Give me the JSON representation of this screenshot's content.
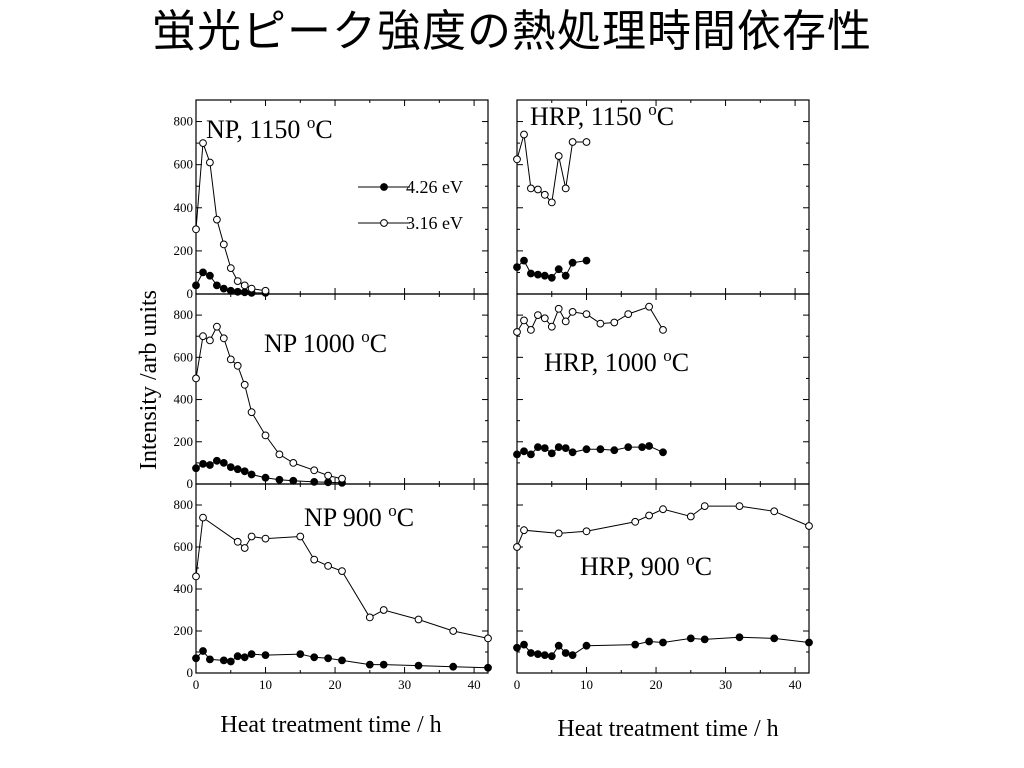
{
  "title": "蛍光ピーク強度の熱処理時間依存性",
  "chart_data": {
    "type": "line",
    "layout": "3x2 grid of panels",
    "ylabel": "Intensity /arb units",
    "xlabel": "Heat treatment time / h",
    "xlim": [
      0,
      42
    ],
    "xticks": [
      0,
      10,
      20,
      30,
      40
    ],
    "ylim": [
      0,
      900
    ],
    "yticks": [
      0,
      200,
      400,
      600,
      800
    ],
    "legend": [
      {
        "name": "4.26 eV",
        "marker": "filled-circle"
      },
      {
        "name": "3.16 eV",
        "marker": "open-circle"
      }
    ],
    "legend_position": "top-right of top-left panel",
    "panels": [
      {
        "label": "NP, 1150 °C",
        "series": [
          {
            "name": "4.26 eV",
            "x": [
              0,
              1,
              2,
              3,
              4,
              5,
              6,
              7,
              8,
              10
            ],
            "y": [
              40,
              100,
              85,
              40,
              25,
              15,
              10,
              8,
              5,
              5
            ]
          },
          {
            "name": "3.16 eV",
            "x": [
              0,
              1,
              2,
              3,
              4,
              5,
              6,
              7,
              8,
              10
            ],
            "y": [
              300,
              700,
              610,
              345,
              230,
              120,
              60,
              40,
              25,
              15
            ]
          }
        ]
      },
      {
        "label": "HRP, 1150 °C",
        "series": [
          {
            "name": "4.26 eV",
            "x": [
              0,
              1,
              2,
              3,
              4,
              5,
              6,
              7,
              8,
              10
            ],
            "y": [
              125,
              155,
              95,
              90,
              85,
              75,
              115,
              85,
              145,
              155
            ]
          },
          {
            "name": "3.16 eV",
            "x": [
              0,
              1,
              2,
              3,
              4,
              5,
              6,
              7,
              8,
              10
            ],
            "y": [
              625,
              740,
              490,
              485,
              460,
              425,
              640,
              490,
              705,
              705
            ]
          }
        ]
      },
      {
        "label": "NP 1000 °C",
        "series": [
          {
            "name": "4.26 eV",
            "x": [
              0,
              1,
              2,
              3,
              4,
              5,
              6,
              7,
              8,
              10,
              12,
              14,
              17,
              19,
              21
            ],
            "y": [
              75,
              95,
              90,
              110,
              100,
              80,
              70,
              60,
              45,
              30,
              20,
              15,
              10,
              8,
              5
            ]
          },
          {
            "name": "3.16 eV",
            "x": [
              0,
              1,
              2,
              3,
              4,
              5,
              6,
              7,
              8,
              10,
              12,
              14,
              17,
              19,
              21
            ],
            "y": [
              500,
              700,
              680,
              745,
              690,
              590,
              560,
              470,
              340,
              230,
              140,
              100,
              65,
              40,
              25
            ]
          }
        ]
      },
      {
        "label": "HRP, 1000 °C",
        "series": [
          {
            "name": "4.26 eV",
            "x": [
              0,
              1,
              2,
              3,
              4,
              5,
              6,
              7,
              8,
              10,
              12,
              14,
              16,
              18,
              19,
              21
            ],
            "y": [
              140,
              155,
              140,
              175,
              170,
              145,
              175,
              170,
              150,
              165,
              165,
              160,
              175,
              175,
              180,
              150
            ]
          },
          {
            "name": "3.16 eV",
            "x": [
              0,
              1,
              2,
              3,
              4,
              5,
              6,
              7,
              8,
              10,
              12,
              14,
              16,
              19,
              21
            ],
            "y": [
              720,
              775,
              730,
              800,
              785,
              745,
              830,
              770,
              815,
              805,
              760,
              765,
              805,
              840,
              730
            ]
          }
        ]
      },
      {
        "label": "NP 900 °C",
        "series": [
          {
            "name": "4.26 eV",
            "x": [
              0,
              1,
              2,
              4,
              5,
              6,
              7,
              8,
              10,
              15,
              17,
              19,
              21,
              25,
              27,
              32,
              37,
              42
            ],
            "y": [
              70,
              105,
              65,
              60,
              55,
              80,
              75,
              90,
              85,
              90,
              75,
              70,
              60,
              40,
              40,
              35,
              30,
              25
            ]
          },
          {
            "name": "3.16 eV",
            "x": [
              0,
              1,
              6,
              7,
              8,
              10,
              15,
              17,
              19,
              21,
              25,
              27,
              32,
              37,
              42
            ],
            "y": [
              460,
              740,
              625,
              595,
              650,
              640,
              650,
              540,
              510,
              485,
              265,
              300,
              255,
              200,
              165
            ]
          }
        ]
      },
      {
        "label": "HRP, 900 °C",
        "series": [
          {
            "name": "4.26 eV",
            "x": [
              0,
              1,
              2,
              3,
              4,
              5,
              6,
              7,
              8,
              10,
              17,
              19,
              21,
              25,
              27,
              32,
              37,
              42
            ],
            "y": [
              120,
              135,
              95,
              90,
              85,
              80,
              130,
              95,
              85,
              130,
              135,
              150,
              145,
              165,
              160,
              170,
              165,
              145
            ]
          },
          {
            "name": "3.16 eV",
            "x": [
              0,
              1,
              6,
              10,
              17,
              19,
              21,
              25,
              27,
              32,
              37,
              42
            ],
            "y": [
              600,
              680,
              665,
              675,
              720,
              750,
              780,
              745,
              795,
              795,
              770,
              700
            ]
          }
        ]
      }
    ]
  }
}
